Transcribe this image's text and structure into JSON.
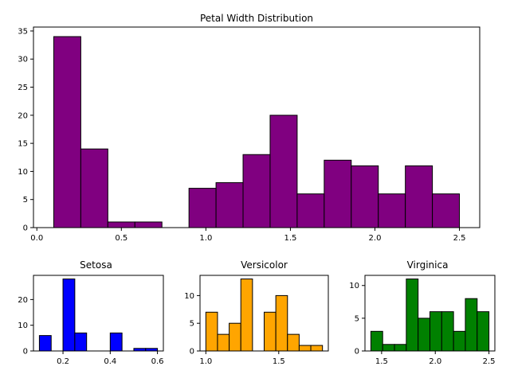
{
  "chart_data": [
    {
      "type": "bar",
      "title": "Petal Width Distribution",
      "xlabel": "",
      "ylabel": "",
      "xlim": [
        -0.02,
        2.62
      ],
      "ylim": [
        0,
        35.7
      ],
      "xticks": [
        0.0,
        0.5,
        1.0,
        1.5,
        2.0,
        2.5
      ],
      "xtick_labels": [
        "0.0",
        "0.5",
        "1.0",
        "1.5",
        "2.0",
        "2.5"
      ],
      "yticks": [
        0,
        5,
        10,
        15,
        20,
        25,
        30,
        35
      ],
      "ytick_labels": [
        "0",
        "5",
        "10",
        "15",
        "20",
        "25",
        "30",
        "35"
      ],
      "bin_edges": [
        0.1,
        0.26,
        0.42,
        0.58,
        0.74,
        0.9,
        1.06,
        1.22,
        1.38,
        1.54,
        1.7,
        1.86,
        2.02,
        2.18,
        2.34,
        2.5
      ],
      "values": [
        34,
        14,
        1,
        1,
        0,
        7,
        8,
        13,
        20,
        6,
        12,
        11,
        6,
        11,
        6
      ],
      "color": "#800080",
      "edgecolor": "#000000",
      "grid": false
    },
    {
      "type": "bar",
      "title": "Setosa",
      "xlabel": "",
      "ylabel": "",
      "xlim": [
        0.075,
        0.625
      ],
      "ylim": [
        0,
        29.4
      ],
      "xticks": [
        0.2,
        0.4,
        0.6
      ],
      "xtick_labels": [
        "0.2",
        "0.4",
        "0.6"
      ],
      "yticks": [
        0,
        10,
        20
      ],
      "ytick_labels": [
        "0",
        "10",
        "20"
      ],
      "bin_edges": [
        0.1,
        0.15,
        0.2,
        0.25,
        0.3,
        0.35,
        0.4,
        0.45,
        0.5,
        0.55,
        0.6
      ],
      "values": [
        6,
        0,
        28,
        7,
        0,
        0,
        7,
        0,
        1,
        1
      ],
      "color": "#0000ff",
      "edgecolor": "#000000",
      "grid": false
    },
    {
      "type": "bar",
      "title": "Versicolor",
      "xlabel": "",
      "ylabel": "",
      "xlim": [
        0.96,
        1.84
      ],
      "ylim": [
        0,
        13.65
      ],
      "xticks": [
        1.0,
        1.5
      ],
      "xtick_labels": [
        "1.0",
        "1.5"
      ],
      "yticks": [
        0,
        5,
        10
      ],
      "ytick_labels": [
        "0",
        "5",
        "10"
      ],
      "bin_edges": [
        1.0,
        1.08,
        1.16,
        1.24,
        1.32,
        1.4,
        1.48,
        1.56,
        1.64,
        1.72,
        1.8
      ],
      "values": [
        7,
        3,
        5,
        13,
        0,
        7,
        10,
        3,
        1,
        1
      ],
      "color": "#ffa500",
      "edgecolor": "#000000",
      "grid": false
    },
    {
      "type": "bar",
      "title": "Virginica",
      "xlabel": "",
      "ylabel": "",
      "xlim": [
        1.345,
        2.555
      ],
      "ylim": [
        0,
        11.55
      ],
      "xticks": [
        1.5,
        2.0,
        2.5
      ],
      "xtick_labels": [
        "1.5",
        "2.0",
        "2.5"
      ],
      "yticks": [
        0,
        5,
        10
      ],
      "ytick_labels": [
        "0",
        "5",
        "10"
      ],
      "bin_edges": [
        1.4,
        1.51,
        1.62,
        1.73,
        1.84,
        1.95,
        2.06,
        2.17,
        2.28,
        2.39,
        2.5
      ],
      "values": [
        3,
        1,
        1,
        11,
        5,
        6,
        6,
        3,
        8,
        6
      ],
      "color": "#008000",
      "edgecolor": "#000000",
      "grid": false
    }
  ]
}
